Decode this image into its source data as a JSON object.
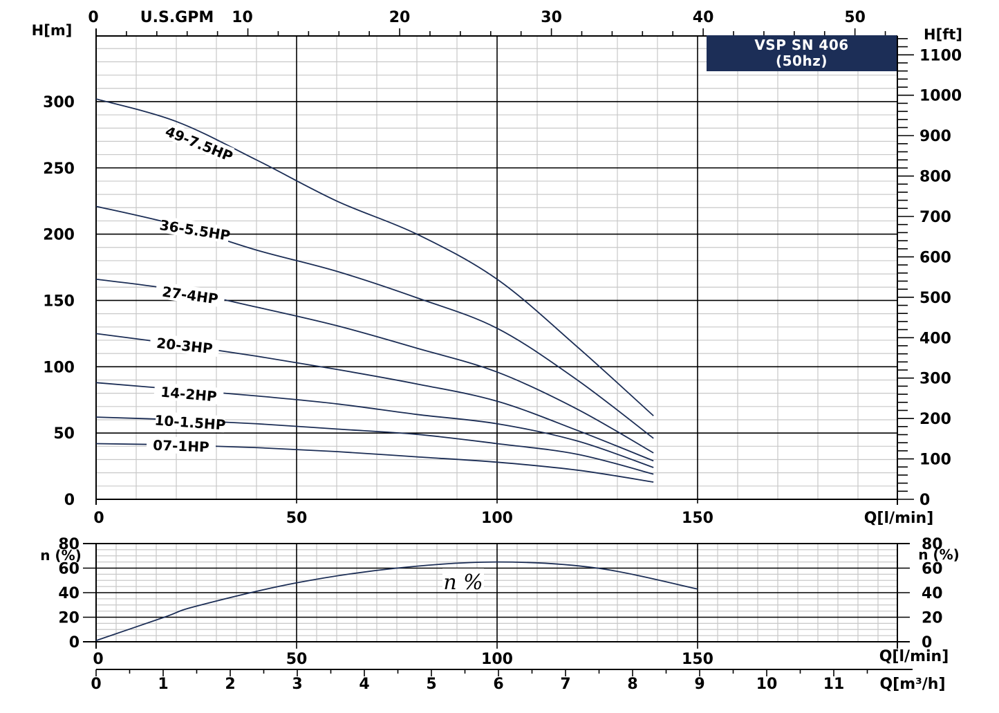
{
  "title": {
    "line1": "VSP SN 406",
    "line2": "(50hz)"
  },
  "colors": {
    "curve": "#1b2d55",
    "title_bg": "#1c2e57",
    "title_text": "#ffffff",
    "grid_minor": "#c8c8c8",
    "grid_major": "#000000"
  },
  "axes": {
    "top_unit": "U.S.GPM",
    "top_ticks": [
      "0",
      "10",
      "20",
      "30",
      "40",
      "50"
    ],
    "left_unit": "H[m]",
    "left_ticks": [
      "0",
      "50",
      "100",
      "150",
      "200",
      "250",
      "300"
    ],
    "right_unit": "H[ft]",
    "right_ticks": [
      "0",
      "100",
      "200",
      "300",
      "400",
      "500",
      "600",
      "700",
      "800",
      "900",
      "1000",
      "1100"
    ],
    "bottom_main_ticks": [
      "0",
      "50",
      "100",
      "150"
    ],
    "bottom_main_unit": "Q[l/min]",
    "eff_left_unit": "n (%)",
    "eff_right_unit": "n (%)",
    "eff_ticks": [
      "0",
      "20",
      "40",
      "60",
      "80"
    ],
    "eff_bottom_ticks": [
      "0",
      "50",
      "100",
      "150"
    ],
    "eff_bottom_unit": "Q[l/min]",
    "m3h_ticks": [
      "0",
      "1",
      "2",
      "3",
      "4",
      "5",
      "6",
      "7",
      "8",
      "9",
      "10",
      "11"
    ],
    "m3h_unit": "Q[m³/h]"
  },
  "eff_curve_label": "n %",
  "chart_data": [
    {
      "type": "line",
      "title": "VSP SN 406 (50hz)",
      "xlabel": "Q[l/min]",
      "ylabel": "H[m]",
      "secondary_ylabel": "H[ft]",
      "secondary_xlabel": "U.S.GPM",
      "xlim": [
        0,
        200
      ],
      "ylim": [
        0,
        350
      ],
      "grid": true,
      "x": [
        0,
        20,
        40,
        60,
        80,
        100,
        120,
        139
      ],
      "series": [
        {
          "name": "49-7.5HP",
          "values": [
            302,
            285,
            256,
            225,
            200,
            166,
            115,
            63
          ]
        },
        {
          "name": "36-5.5HP",
          "values": [
            221,
            207,
            188,
            172,
            152,
            129,
            90,
            46
          ]
        },
        {
          "name": "27-4HP",
          "values": [
            166,
            158,
            145,
            131,
            114,
            96,
            68,
            35
          ]
        },
        {
          "name": "20-3HP",
          "values": [
            125,
            117,
            108,
            98,
            87,
            74,
            52,
            29
          ]
        },
        {
          "name": "14-2HP",
          "values": [
            88,
            83,
            78,
            72,
            64,
            57,
            44,
            24
          ]
        },
        {
          "name": "10-1.5HP",
          "values": [
            62,
            60,
            57,
            53,
            49,
            42,
            34,
            19
          ]
        },
        {
          "name": "07-1HP",
          "values": [
            42,
            41,
            39,
            36,
            32,
            28,
            22,
            13
          ]
        }
      ]
    },
    {
      "type": "line",
      "title": "Efficiency",
      "xlabel": "Q[l/min]",
      "ylabel": "n (%)",
      "secondary_xlabel": "Q[m³/h]",
      "xlim": [
        0,
        200
      ],
      "ylim": [
        0,
        80
      ],
      "grid": true,
      "x": [
        0,
        17,
        25,
        50,
        75,
        100,
        125,
        150
      ],
      "series": [
        {
          "name": "n %",
          "values": [
            1,
            20,
            29,
            48,
            60,
            65,
            60,
            43
          ]
        }
      ]
    }
  ]
}
